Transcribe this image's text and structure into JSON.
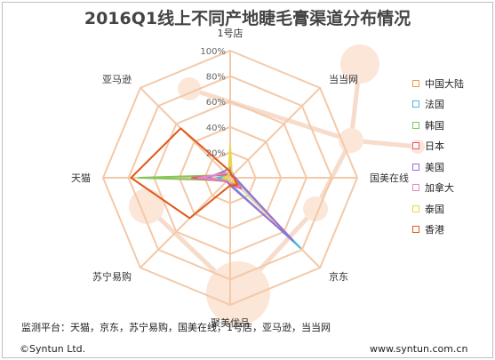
{
  "title": "2016Q1线上不同产地睫毛膏渠道分布情况",
  "footer": {
    "note": "监测平台：天猫，京东，苏宁易购，国美在线，1号店，亚马逊，当当网",
    "copyright": "©Syntun Ltd.",
    "website": "www.syntun.com.cn"
  },
  "chart_data": {
    "type": "radar",
    "axes": [
      "1号店",
      "当当网",
      "国美在线",
      "京东",
      "聚美优品",
      "苏宁易购",
      "天猫",
      "亚马逊"
    ],
    "tick_labels": [
      "20%",
      "40%",
      "60%",
      "80%",
      "100%"
    ],
    "range": [
      0,
      100
    ],
    "grid": true,
    "legend_position": "right",
    "series": [
      {
        "name": "中国大陆",
        "color": "#E8A33C",
        "values": [
          4,
          2,
          3,
          6,
          4,
          3,
          8,
          3
        ]
      },
      {
        "name": "法国",
        "color": "#4FB8D6",
        "values": [
          3,
          2,
          3,
          78,
          5,
          3,
          10,
          2
        ]
      },
      {
        "name": "韩国",
        "color": "#88C45A",
        "values": [
          5,
          3,
          4,
          8,
          5,
          3,
          72,
          3
        ]
      },
      {
        "name": "日本",
        "color": "#E9557A",
        "values": [
          6,
          3,
          3,
          12,
          5,
          4,
          30,
          4
        ]
      },
      {
        "name": "美国",
        "color": "#9A6FD0",
        "values": [
          8,
          3,
          4,
          70,
          6,
          4,
          18,
          7
        ]
      },
      {
        "name": "加拿大",
        "color": "#E38BC4",
        "values": [
          3,
          2,
          3,
          10,
          4,
          3,
          25,
          5
        ]
      },
      {
        "name": "泰国",
        "color": "#EAD64A",
        "values": [
          25,
          2,
          3,
          5,
          3,
          2,
          6,
          2
        ]
      },
      {
        "name": "香港",
        "color": "#E05A1B",
        "values": [
          5,
          2,
          3,
          8,
          6,
          45,
          78,
          55
        ]
      }
    ]
  }
}
